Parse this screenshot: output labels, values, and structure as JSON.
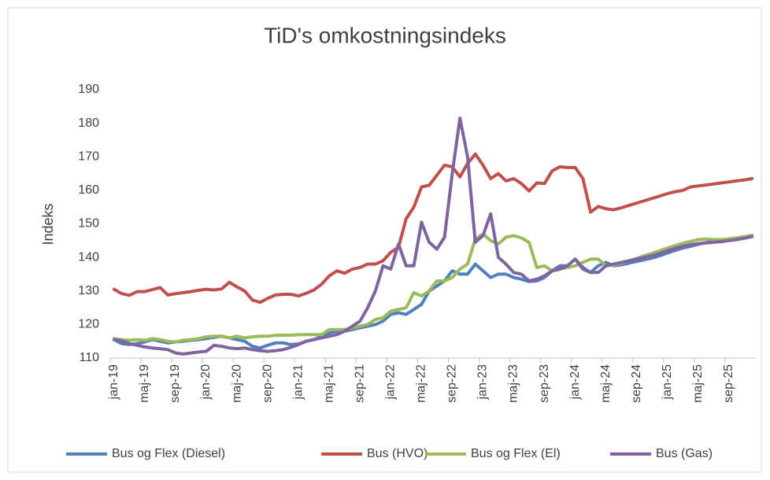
{
  "chart_data": {
    "type": "line",
    "title": "TiD's omkostningsindeks",
    "y_label": "Indeks",
    "categories": [
      "jan-19",
      null,
      null,
      null,
      "maj-19",
      null,
      null,
      null,
      "sep-19",
      null,
      null,
      null,
      "jan-20",
      null,
      null,
      null,
      "maj-20",
      null,
      null,
      null,
      "sep-20",
      null,
      null,
      null,
      "jan-21",
      null,
      null,
      null,
      "maj-21",
      null,
      null,
      null,
      "sep-21",
      null,
      null,
      null,
      "jan-22",
      null,
      null,
      null,
      "maj-22",
      null,
      null,
      null,
      "sep-22",
      null,
      null,
      null,
      "jan-23",
      null,
      null,
      null,
      "maj-23",
      null,
      null,
      null,
      "sep-23",
      null,
      null,
      null,
      "jan-24",
      null,
      null,
      null,
      "maj-24",
      null,
      null,
      null,
      "sep-24",
      null,
      null,
      null,
      "jan-25",
      null,
      null,
      null,
      "maj-25",
      null,
      null,
      null,
      "sep-25",
      null,
      null,
      null
    ],
    "ylim": [
      110,
      190
    ],
    "yticks": [
      110,
      120,
      130,
      140,
      150,
      160,
      170,
      180,
      190
    ],
    "grid": false,
    "legend": "bottom",
    "series": [
      {
        "name": "Bus og Flex (Diesel)",
        "color": "#4F81BD",
        "values": [
          115.5,
          114.3,
          114,
          114.3,
          114.8,
          115.5,
          115,
          114.5,
          114.8,
          115,
          115.3,
          115.5,
          115.8,
          116.2,
          116.5,
          116,
          115.5,
          115,
          113.5,
          113,
          113.8,
          114.5,
          114.5,
          114,
          114.2,
          115,
          115.5,
          116.5,
          117.5,
          118,
          118,
          118.5,
          119,
          119.5,
          120,
          121,
          123,
          123.5,
          123,
          124.5,
          126,
          130,
          131.5,
          133,
          136,
          135,
          135,
          138,
          136,
          134,
          135,
          135,
          134,
          133.5,
          132.8,
          133,
          134,
          136,
          137.5,
          137.5,
          139.5,
          137,
          135.5,
          137.5,
          138.5,
          137.5,
          137.8,
          138.3,
          138.8,
          139.3,
          139.8,
          140.5,
          141.3,
          142.1,
          142.8,
          143.3,
          143.9,
          144.4,
          144.8,
          145.2,
          145.5,
          145.8,
          146.1,
          146.5
        ]
      },
      {
        "name": "Bus (HVO)",
        "color": "#C0504D",
        "values": [
          130.5,
          129.2,
          128.7,
          129.8,
          129.8,
          130.4,
          131,
          128.8,
          129.2,
          129.5,
          129.8,
          130.2,
          130.5,
          130.3,
          130.6,
          132.6,
          131.2,
          130,
          127.3,
          126.6,
          127.8,
          128.8,
          129,
          129,
          128.5,
          129.3,
          130.3,
          132,
          134.5,
          136,
          135.3,
          136.5,
          137,
          138,
          138,
          139,
          141.5,
          143,
          151.5,
          155,
          161,
          161.5,
          164.5,
          167.5,
          167,
          164,
          168,
          170.8,
          167.5,
          163.5,
          165,
          162.8,
          163.5,
          162,
          159.8,
          162.2,
          162,
          165.8,
          167,
          166.8,
          166.8,
          163.5,
          153.5,
          155.2,
          154.5,
          154.2,
          154.8,
          155.5,
          156.2,
          156.9,
          157.6,
          158.3,
          159,
          159.6,
          160,
          161,
          161.3,
          161.6,
          161.9,
          162.2,
          162.5,
          162.8,
          163.1,
          163.5
        ]
      },
      {
        "name": "Bus og Flex (El)",
        "color": "#9BBB59",
        "values": [
          115.8,
          115.5,
          115.3,
          115.5,
          115.3,
          115.8,
          115.5,
          115,
          114.8,
          115.3,
          115.5,
          115.8,
          116.3,
          116.5,
          116.5,
          116,
          116.5,
          116,
          116.3,
          116.5,
          116.5,
          116.8,
          116.8,
          116.8,
          117,
          117,
          117,
          117,
          118.5,
          118.5,
          118.5,
          119,
          119.5,
          120,
          121.5,
          122,
          124,
          124.5,
          125,
          129.5,
          128.5,
          130,
          133,
          133,
          134,
          136.5,
          138,
          145.5,
          147,
          145,
          144,
          146,
          146.5,
          145.8,
          144.5,
          137,
          137.5,
          136,
          136.5,
          137,
          137.5,
          138.5,
          139.5,
          139.5,
          137.5,
          137.7,
          138.3,
          139,
          139.7,
          140.5,
          141.2,
          142,
          142.8,
          143.5,
          144.2,
          144.8,
          145.3,
          145.5,
          145.3,
          145.3,
          145.5,
          145.8,
          146.2,
          146.6
        ]
      },
      {
        "name": "Bus (Gas)",
        "color": "#8064A2",
        "values": [
          115.5,
          115.2,
          114.3,
          113.8,
          113.3,
          113,
          112.8,
          112.5,
          111.5,
          111.2,
          111.5,
          111.8,
          112,
          113.8,
          113.5,
          113,
          112.8,
          113,
          112.5,
          112.2,
          112,
          112.2,
          112.5,
          113.2,
          114,
          115,
          115.5,
          116,
          116.5,
          117,
          118,
          119.5,
          121,
          125,
          130,
          137.5,
          136.5,
          144,
          137.5,
          137.5,
          150.5,
          144.5,
          142.5,
          146,
          165,
          181.5,
          170,
          144.5,
          146.5,
          153,
          140,
          138,
          135.5,
          135,
          133,
          133.5,
          134.5,
          136,
          136.5,
          137.5,
          139.5,
          136.5,
          135.5,
          135.5,
          137.5,
          138,
          138.5,
          139,
          139.5,
          140,
          140.5,
          141.2,
          142,
          142.7,
          143.3,
          143.8,
          144.1,
          144.3,
          144.5,
          144.7,
          145,
          145.3,
          145.7,
          146.2
        ]
      }
    ]
  }
}
